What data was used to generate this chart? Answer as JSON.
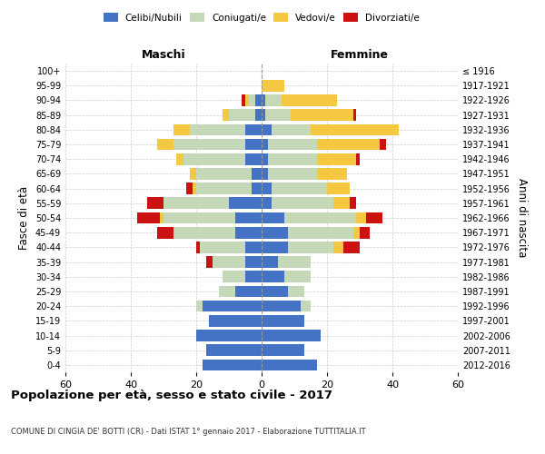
{
  "age_groups": [
    "0-4",
    "5-9",
    "10-14",
    "15-19",
    "20-24",
    "25-29",
    "30-34",
    "35-39",
    "40-44",
    "45-49",
    "50-54",
    "55-59",
    "60-64",
    "65-69",
    "70-74",
    "75-79",
    "80-84",
    "85-89",
    "90-94",
    "95-99",
    "100+"
  ],
  "birth_years": [
    "2012-2016",
    "2007-2011",
    "2002-2006",
    "1997-2001",
    "1992-1996",
    "1987-1991",
    "1982-1986",
    "1977-1981",
    "1972-1976",
    "1967-1971",
    "1962-1966",
    "1957-1961",
    "1952-1956",
    "1947-1951",
    "1942-1946",
    "1937-1941",
    "1932-1936",
    "1927-1931",
    "1922-1926",
    "1917-1921",
    "≤ 1916"
  ],
  "maschi": {
    "celibi": [
      18,
      17,
      20,
      16,
      18,
      8,
      5,
      5,
      5,
      8,
      8,
      10,
      3,
      3,
      5,
      5,
      5,
      2,
      2,
      0,
      0
    ],
    "coniugati": [
      0,
      0,
      0,
      0,
      2,
      5,
      7,
      10,
      14,
      19,
      22,
      20,
      17,
      17,
      19,
      22,
      17,
      8,
      2,
      0,
      0
    ],
    "vedovi": [
      0,
      0,
      0,
      0,
      0,
      0,
      0,
      0,
      0,
      0,
      1,
      0,
      1,
      2,
      2,
      5,
      5,
      2,
      1,
      0,
      0
    ],
    "divorziati": [
      0,
      0,
      0,
      0,
      0,
      0,
      0,
      2,
      1,
      5,
      7,
      5,
      2,
      0,
      0,
      0,
      0,
      0,
      1,
      0,
      0
    ]
  },
  "femmine": {
    "nubili": [
      17,
      13,
      18,
      13,
      12,
      8,
      7,
      5,
      8,
      8,
      7,
      3,
      3,
      2,
      2,
      2,
      3,
      1,
      1,
      0,
      0
    ],
    "coniugate": [
      0,
      0,
      0,
      0,
      3,
      5,
      8,
      10,
      14,
      20,
      22,
      19,
      17,
      15,
      15,
      15,
      12,
      8,
      5,
      0,
      0
    ],
    "vedove": [
      0,
      0,
      0,
      0,
      0,
      0,
      0,
      0,
      3,
      2,
      3,
      5,
      7,
      9,
      12,
      19,
      27,
      19,
      17,
      7,
      0
    ],
    "divorziate": [
      0,
      0,
      0,
      0,
      0,
      0,
      0,
      0,
      5,
      3,
      5,
      2,
      0,
      0,
      1,
      2,
      0,
      1,
      0,
      0,
      0
    ]
  },
  "colors": {
    "celibi": "#4472c4",
    "coniugati": "#c5d9b8",
    "vedovi": "#f5c842",
    "divorziati": "#cc1111"
  },
  "xlim": 60,
  "title": "Popolazione per età, sesso e stato civile - 2017",
  "subtitle": "COMUNE DI CINGIA DE' BOTTI (CR) - Dati ISTAT 1° gennaio 2017 - Elaborazione TUTTITALIA.IT",
  "ylabel_left": "Fasce di età",
  "ylabel_right": "Anni di nascita",
  "xlabel_maschi": "Maschi",
  "xlabel_femmine": "Femmine",
  "legend_labels": [
    "Celibi/Nubili",
    "Coniugati/e",
    "Vedovi/e",
    "Divorziati/e"
  ]
}
